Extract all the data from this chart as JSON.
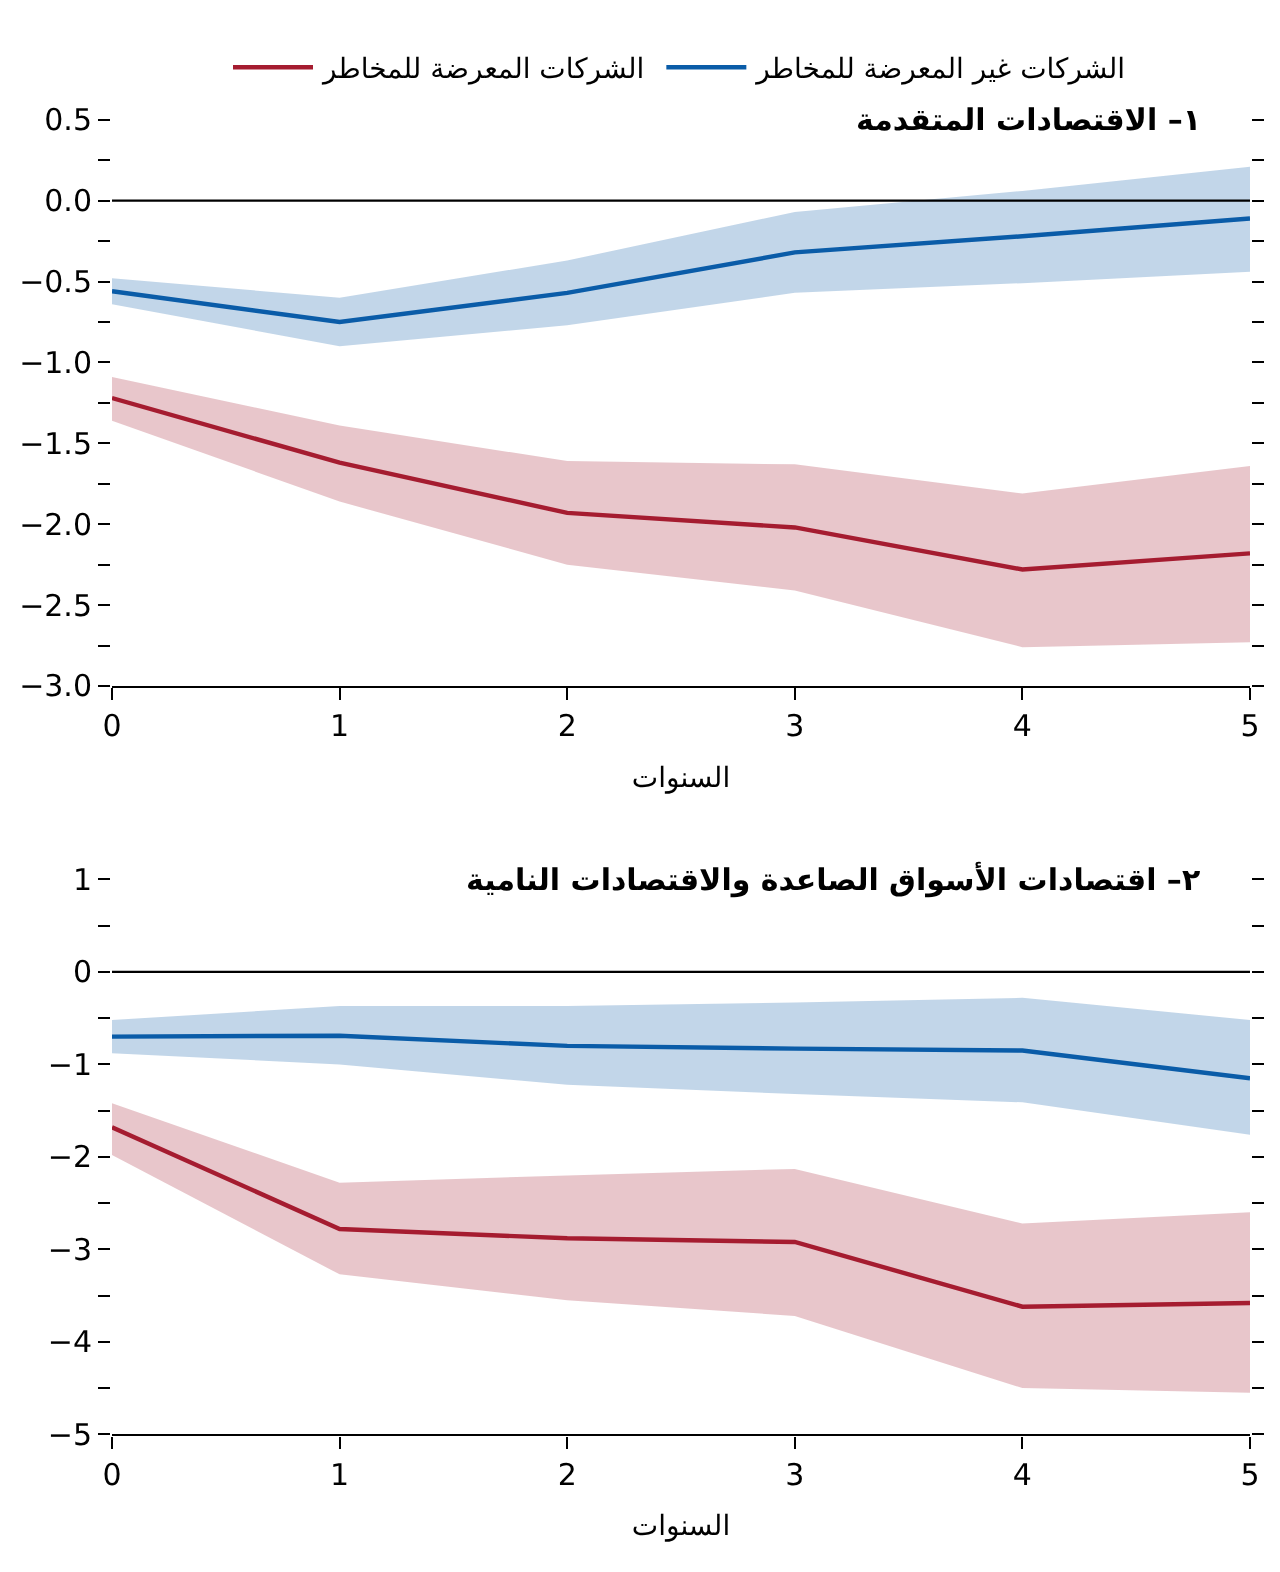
{
  "chart_data": [
    {
      "type": "line",
      "title": "١– الاقتصادات المتقدمة",
      "xlabel": "السنوات",
      "x": [
        0,
        1,
        2,
        3,
        4,
        5
      ],
      "xlim": [
        0,
        5
      ],
      "xticks": [
        0,
        1,
        2,
        3,
        4,
        5
      ],
      "ylim": [
        -3.0,
        0.5
      ],
      "yticks": [
        {
          "value": 0.5,
          "label": "0.5"
        },
        {
          "value": 0.25,
          "label": null
        },
        {
          "value": 0.0,
          "label": "0.0"
        },
        {
          "value": -0.25,
          "label": null
        },
        {
          "value": -0.5,
          "label": "−0.5"
        },
        {
          "value": -0.75,
          "label": null
        },
        {
          "value": -1.0,
          "label": "−1.0"
        },
        {
          "value": -1.25,
          "label": null
        },
        {
          "value": -1.5,
          "label": "−1.5"
        },
        {
          "value": -1.75,
          "label": null
        },
        {
          "value": -2.0,
          "label": "−2.0"
        },
        {
          "value": -2.25,
          "label": null
        },
        {
          "value": -2.5,
          "label": "−2.5"
        },
        {
          "value": -2.75,
          "label": null
        },
        {
          "value": -3.0,
          "label": "−3.0"
        }
      ],
      "legend": "top",
      "marker": "none",
      "line_style": "solid",
      "ref_lines": [
        {
          "axis": "y",
          "value": 0,
          "color": "#000000"
        }
      ],
      "series": [
        {
          "name": "الشركات غير المعرضة للمخاطر",
          "color": "#0a5ca8",
          "values": [
            -0.56,
            -0.75,
            -0.57,
            -0.32,
            -0.22,
            -0.11
          ],
          "lower": [
            -0.64,
            -0.9,
            -0.77,
            -0.57,
            -0.51,
            -0.44
          ],
          "upper": [
            -0.48,
            -0.6,
            -0.37,
            -0.07,
            0.06,
            0.21
          ]
        },
        {
          "name": "الشركات المعرضة للمخاطر",
          "color": "#a51c30",
          "values": [
            -1.22,
            -1.62,
            -1.93,
            -2.02,
            -2.28,
            -2.18
          ],
          "lower": [
            -1.36,
            -1.86,
            -2.25,
            -2.41,
            -2.76,
            -2.73
          ],
          "upper": [
            -1.09,
            -1.39,
            -1.61,
            -1.63,
            -1.81,
            -1.64
          ]
        }
      ]
    },
    {
      "type": "line",
      "title": "٢– اقتصادات الأسواق الصاعدة والاقتصادات النامية",
      "xlabel": "السنوات",
      "x": [
        0,
        1,
        2,
        3,
        4,
        5
      ],
      "xlim": [
        0,
        5
      ],
      "xticks": [
        0,
        1,
        2,
        3,
        4,
        5
      ],
      "ylim": [
        -5,
        1
      ],
      "yticks": [
        {
          "value": 1,
          "label": "1"
        },
        {
          "value": 0.5,
          "label": null
        },
        {
          "value": 0,
          "label": "0"
        },
        {
          "value": -0.5,
          "label": null
        },
        {
          "value": -1,
          "label": "−1"
        },
        {
          "value": -1.5,
          "label": null
        },
        {
          "value": -2,
          "label": "−2"
        },
        {
          "value": -2.5,
          "label": null
        },
        {
          "value": -3,
          "label": "−3"
        },
        {
          "value": -3.5,
          "label": null
        },
        {
          "value": -4,
          "label": "−4"
        },
        {
          "value": -4.5,
          "label": null
        },
        {
          "value": -5,
          "label": "−5"
        }
      ],
      "marker": "none",
      "line_style": "solid",
      "ref_lines": [
        {
          "axis": "y",
          "value": 0,
          "color": "#000000"
        }
      ],
      "series": [
        {
          "color": "#0a5ca8",
          "values": [
            -0.7,
            -0.69,
            -0.8,
            -0.83,
            -0.85,
            -1.15
          ],
          "lower": [
            -0.88,
            -1.0,
            -1.22,
            -1.32,
            -1.41,
            -1.76
          ],
          "upper": [
            -0.52,
            -0.37,
            -0.37,
            -0.33,
            -0.28,
            -0.52
          ]
        },
        {
          "color": "#a51c30",
          "values": [
            -1.68,
            -2.78,
            -2.88,
            -2.92,
            -3.62,
            -3.58
          ],
          "lower": [
            -1.98,
            -3.27,
            -3.55,
            -3.72,
            -4.5,
            -4.55
          ],
          "upper": [
            -1.42,
            -2.28,
            -2.2,
            -2.13,
            -2.72,
            -2.6
          ]
        }
      ]
    }
  ]
}
